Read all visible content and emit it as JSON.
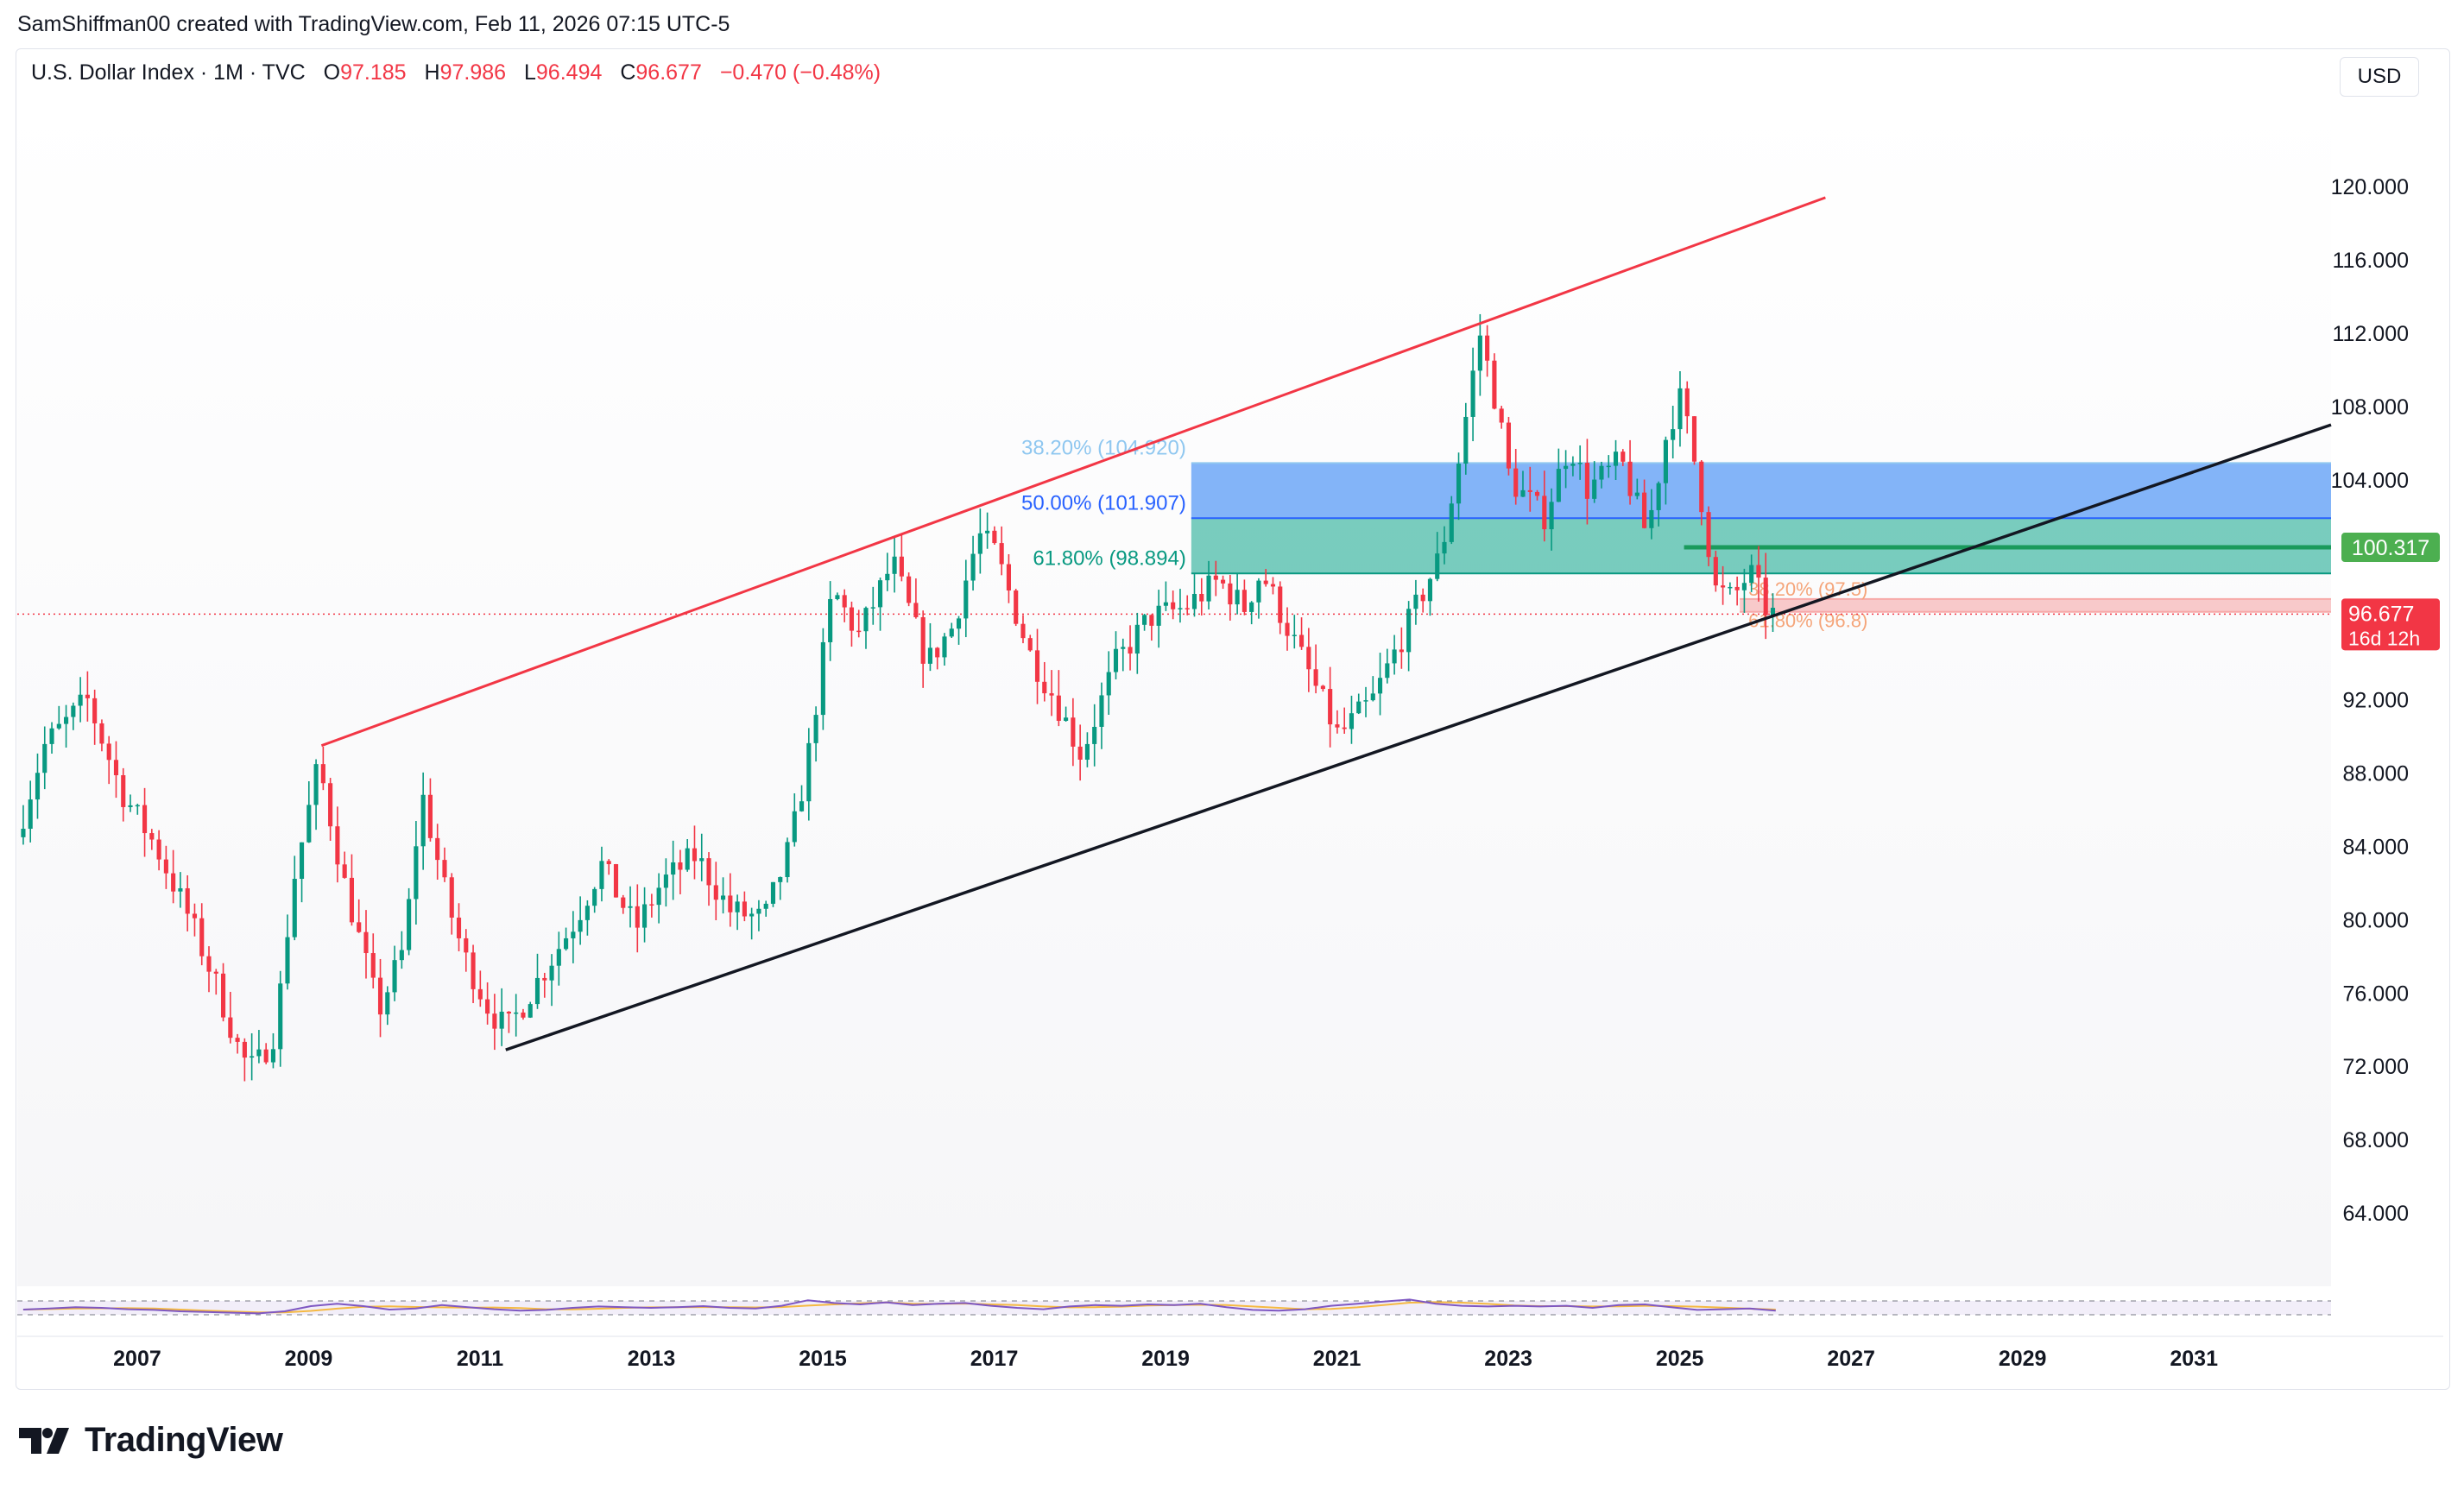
{
  "header": {
    "text": "SamShiffman00 created with TradingView.com, Feb 11, 2026 07:15 UTC-5"
  },
  "legend": {
    "symbol": "U.S. Dollar Index · 1M · TVC",
    "open_label": "O",
    "open": "97.185",
    "high_label": "H",
    "high": "97.986",
    "low_label": "L",
    "low": "96.494",
    "close_label": "C",
    "close": "96.677",
    "change": "−0.470 (−0.48%)"
  },
  "currency": "USD",
  "price_badges": {
    "level": "100.317",
    "last_price": "96.677",
    "countdown": "16d 12h"
  },
  "colors": {
    "up": "#089981",
    "down": "#f23645",
    "channel_top": "#f23645",
    "channel_bottom": "#131722",
    "fib_blue": "#5b9cf6",
    "fib_teal": "#22ab94",
    "level_green": "#4caf50",
    "rsi": "#7e57c2",
    "rsi_ma": "#f5b942"
  },
  "brand": {
    "name": "TradingView",
    "logo_icon": "tradingview-logo-icon"
  },
  "chart_data": {
    "type": "candlestick",
    "interval": "1M",
    "x_range": [
      2005.6,
      2032.6
    ],
    "ylim": [
      60,
      125
    ],
    "y_ticks": [
      64,
      68,
      72,
      76,
      80,
      84,
      88,
      92,
      96,
      100,
      104,
      108,
      112,
      116,
      120
    ],
    "y_tick_labels": [
      "64.000",
      "68.000",
      "72.000",
      "76.000",
      "80.000",
      "84.000",
      "88.000",
      "92.000",
      "",
      "",
      "104.000",
      "108.000",
      "112.000",
      "116.000",
      "120.000"
    ],
    "x_ticks": [
      2007,
      2009,
      2011,
      2013,
      2015,
      2017,
      2019,
      2021,
      2023,
      2025,
      2027,
      2029,
      2031
    ],
    "x_tick_labels": [
      "2007",
      "2009",
      "2011",
      "2013",
      "2015",
      "2017",
      "2019",
      "2021",
      "2023",
      "2025",
      "2027",
      "2029",
      "2031"
    ],
    "grid": false,
    "price_path": [
      [
        2005.67,
        84.5
      ],
      [
        2006.0,
        89.5
      ],
      [
        2006.5,
        92.0
      ],
      [
        2006.9,
        87.0
      ],
      [
        2007.3,
        84.0
      ],
      [
        2007.7,
        80.0
      ],
      [
        2008.0,
        76.5
      ],
      [
        2008.3,
        72.5
      ],
      [
        2008.45,
        71.8
      ],
      [
        2008.7,
        74.0
      ],
      [
        2008.9,
        82.0
      ],
      [
        2009.2,
        88.5
      ],
      [
        2009.5,
        82.0
      ],
      [
        2009.9,
        75.0
      ],
      [
        2010.2,
        78.5
      ],
      [
        2010.4,
        87.0
      ],
      [
        2010.7,
        81.0
      ],
      [
        2010.9,
        78.0
      ],
      [
        2011.2,
        75.0
      ],
      [
        2011.4,
        74.0
      ],
      [
        2011.8,
        77.0
      ],
      [
        2012.2,
        80.0
      ],
      [
        2012.5,
        83.0
      ],
      [
        2012.9,
        79.5
      ],
      [
        2013.2,
        82.0
      ],
      [
        2013.6,
        83.5
      ],
      [
        2014.0,
        80.5
      ],
      [
        2014.4,
        80.0
      ],
      [
        2014.7,
        84.0
      ],
      [
        2014.9,
        88.5
      ],
      [
        2015.2,
        98.0
      ],
      [
        2015.5,
        95.5
      ],
      [
        2015.9,
        99.5
      ],
      [
        2016.3,
        94.0
      ],
      [
        2016.6,
        96.0
      ],
      [
        2016.9,
        101.0
      ],
      [
        2017.1,
        100.0
      ],
      [
        2017.5,
        94.5
      ],
      [
        2017.8,
        92.0
      ],
      [
        2018.1,
        89.0
      ],
      [
        2018.5,
        94.0
      ],
      [
        2018.9,
        96.5
      ],
      [
        2019.3,
        97.0
      ],
      [
        2019.7,
        98.5
      ],
      [
        2020.0,
        97.0
      ],
      [
        2020.2,
        99.0
      ],
      [
        2020.5,
        96.0
      ],
      [
        2020.9,
        92.0
      ],
      [
        2021.1,
        90.0
      ],
      [
        2021.5,
        92.0
      ],
      [
        2021.9,
        96.0
      ],
      [
        2022.3,
        100.0
      ],
      [
        2022.5,
        105.0
      ],
      [
        2022.75,
        112.0
      ],
      [
        2022.95,
        108.0
      ],
      [
        2023.1,
        104.0
      ],
      [
        2023.5,
        102.0
      ],
      [
        2023.8,
        106.0
      ],
      [
        2024.0,
        103.5
      ],
      [
        2024.4,
        105.0
      ],
      [
        2024.7,
        101.0
      ],
      [
        2024.95,
        107.0
      ],
      [
        2025.1,
        108.5
      ],
      [
        2025.3,
        104.0
      ],
      [
        2025.5,
        98.0
      ],
      [
        2025.7,
        97.5
      ],
      [
        2025.9,
        99.0
      ],
      [
        2026.12,
        96.677
      ]
    ],
    "channel_top": {
      "from": [
        2009.15,
        89.5
      ],
      "to": [
        2026.7,
        119.4
      ]
    },
    "channel_bottom": {
      "from": [
        2011.3,
        72.9
      ],
      "to": [
        2032.6,
        107.0
      ]
    },
    "fib_zone": {
      "x_range": [
        2019.3,
        2032.6
      ],
      "levels": [
        {
          "label": "38.20% (104.920)",
          "value": 104.92
        },
        {
          "label": "50.00% (101.907)",
          "value": 101.907
        },
        {
          "label": "61.80% (98.894)",
          "value": 98.894
        }
      ]
    },
    "fib_small": {
      "x_range": [
        2025.7,
        2032.6
      ],
      "levels": [
        {
          "label": "38.20% (97.5)",
          "value": 97.5
        },
        {
          "label": "61.80% (96.8)",
          "value": 96.8
        }
      ]
    },
    "horizontal_level": {
      "value": 100.317,
      "from_x": 2025.05
    },
    "last_price": 96.677,
    "rsi": {
      "range": [
        0,
        100
      ],
      "bands": [
        70,
        30
      ],
      "values": [
        45,
        48,
        52,
        50,
        46,
        44,
        40,
        38,
        36,
        34,
        40,
        55,
        62,
        55,
        45,
        48,
        58,
        52,
        46,
        42,
        44,
        50,
        54,
        52,
        50,
        52,
        55,
        50,
        48,
        56,
        72,
        64,
        60,
        66,
        58,
        62,
        64,
        56,
        50,
        46,
        54,
        58,
        56,
        60,
        58,
        62,
        52,
        44,
        42,
        46,
        56,
        62,
        68,
        74,
        62,
        56,
        54,
        56,
        54,
        56,
        50,
        58,
        60,
        52,
        44,
        46,
        48,
        42
      ]
    }
  }
}
